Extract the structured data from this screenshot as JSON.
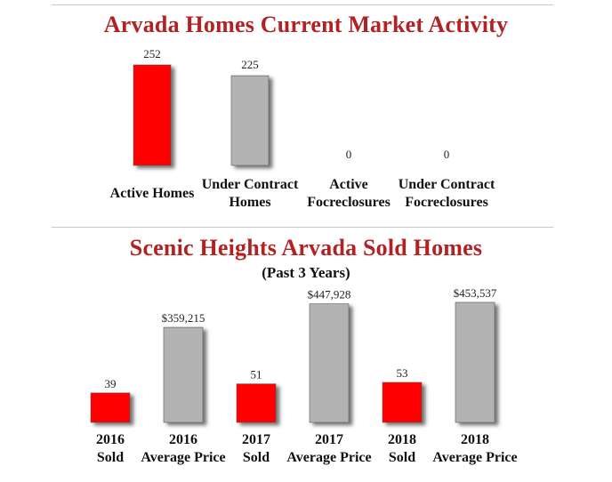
{
  "colors": {
    "title": "#b22222",
    "red_bar": "#ff0000",
    "gray_bar": "#b3b3b3"
  },
  "chart_data": [
    {
      "type": "bar",
      "title": "Arvada Homes Current Market Activity",
      "categories": [
        [
          "Active Homes"
        ],
        [
          "Under Contract",
          "Homes"
        ],
        [
          "Active",
          "Focreclosures"
        ],
        [
          "Under Contract",
          "Focreclosures"
        ]
      ],
      "values": [
        252,
        225,
        0,
        0
      ],
      "value_labels": [
        "252",
        "225",
        "0",
        "0"
      ],
      "bar_colors": [
        "red",
        "gray",
        "red",
        "gray"
      ],
      "ylim": [
        0,
        252
      ]
    },
    {
      "type": "bar",
      "title": "Scenic Heights Arvada Sold Homes",
      "subtitle": "(Past 3 Years)",
      "categories": [
        [
          "2016",
          "Sold"
        ],
        [
          "2016",
          "Average Price"
        ],
        [
          "2017",
          "Sold"
        ],
        [
          "2017",
          "Average Price"
        ],
        [
          "2018",
          "Sold"
        ],
        [
          "2018",
          "Average Price"
        ]
      ],
      "values": [
        39,
        359215,
        51,
        447928,
        53,
        453537
      ],
      "value_labels": [
        "39",
        "$359,215",
        "51",
        "$447,928",
        "53",
        "$453,537"
      ],
      "bar_colors": [
        "red",
        "gray",
        "red",
        "gray",
        "red",
        "gray"
      ]
    }
  ]
}
